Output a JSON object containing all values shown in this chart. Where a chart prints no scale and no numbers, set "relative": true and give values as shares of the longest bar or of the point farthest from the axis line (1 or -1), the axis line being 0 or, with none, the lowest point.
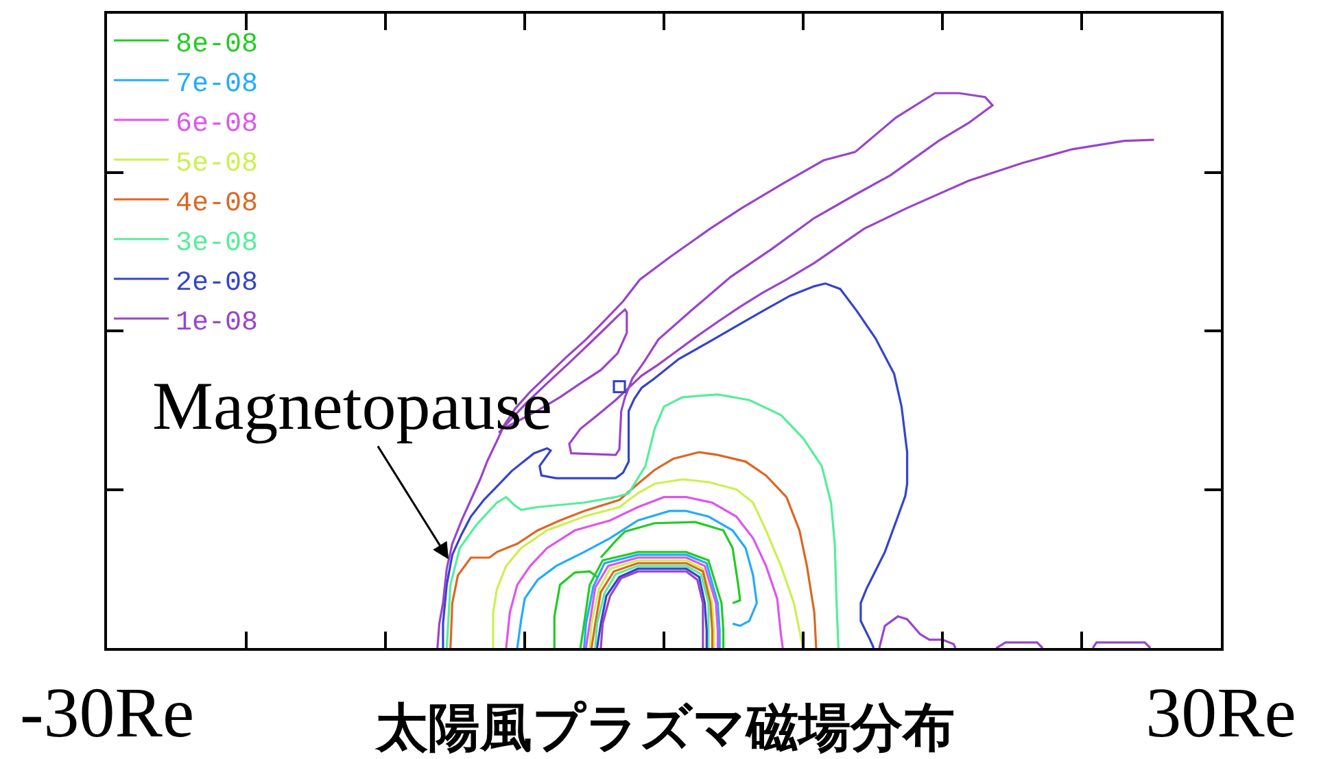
{
  "chart_data": {
    "type": "line",
    "relative": true,
    "xlabel": "太陽風プラズマ磁場分布",
    "xlim": [
      -30,
      30
    ],
    "xticks": [
      {
        "value": -30,
        "label": "-30Re"
      },
      {
        "value": -22.5,
        "label": null
      },
      {
        "value": -15,
        "label": null
      },
      {
        "value": -7.5,
        "label": null
      },
      {
        "value": 0,
        "label": null
      },
      {
        "value": 7.5,
        "label": null
      },
      {
        "value": 15,
        "label": null
      },
      {
        "value": 22.5,
        "label": null
      },
      {
        "value": 30,
        "label": "30Re"
      }
    ],
    "grid": false,
    "legend": "top left",
    "annotations": [
      {
        "text": "Magnetopause",
        "x": -11.6,
        "y": 0.16
      }
    ],
    "series": [
      {
        "name": "8e-08",
        "color": "#22cc22",
        "x": [
          -5.9,
          -5.9,
          -5.6,
          -4.8,
          -4.0,
          -3.6,
          null,
          -3.4,
          -2.6,
          -2.1,
          -0.5,
          1.7,
          3.2,
          3.7,
          4.0,
          4.1,
          3.7,
          null,
          -4.5,
          -4.3,
          -4.0,
          -3.3,
          -1.4,
          1.2,
          2.4,
          3.1,
          3.2,
          3.2
        ],
        "values": [
          0,
          0.057,
          0.114,
          0.136,
          0.138,
          0.128,
          null,
          0.163,
          0.193,
          0.21,
          0.225,
          0.227,
          0.212,
          0.18,
          0.114,
          0.086,
          0.081,
          null,
          0,
          0.044,
          0.114,
          0.158,
          0.173,
          0.173,
          0.158,
          0.081,
          0.032,
          0
        ]
      },
      {
        "name": "7e-08",
        "color": "#22aaff",
        "x": [
          -7.9,
          -7.7,
          -7.5,
          -6.8,
          -5.8,
          -4.3,
          -2.9,
          -1.4,
          0.3,
          1.2,
          2.4,
          3.7,
          4.4,
          4.8,
          5.0,
          4.6,
          4.1,
          3.7,
          null,
          -4.3,
          -4.2,
          -3.8,
          -3.2,
          -1.4,
          1.2,
          2.3,
          2.9,
          3.0,
          3.0
        ],
        "values": [
          0,
          0.049,
          0.089,
          0.123,
          0.148,
          0.173,
          0.198,
          0.23,
          0.247,
          0.247,
          0.237,
          0.212,
          0.18,
          0.131,
          0.081,
          0.049,
          0.04,
          0.044,
          null,
          0,
          0.044,
          0.111,
          0.153,
          0.168,
          0.168,
          0.153,
          0.081,
          0.032,
          0
        ]
      },
      {
        "name": "6e-08",
        "color": "#dd55ee",
        "x": [
          -8.5,
          -8.3,
          -7.9,
          -7.2,
          -6.3,
          -4.8,
          -2.9,
          -1.4,
          0.0,
          1.2,
          2.6,
          3.9,
          4.8,
          5.5,
          6.1,
          6.3,
          6.4,
          null,
          -4.2,
          -4.0,
          -3.7,
          -3.0,
          -1.4,
          1.2,
          2.2,
          2.8,
          2.9,
          2.9
        ],
        "values": [
          0,
          0.064,
          0.114,
          0.148,
          0.18,
          0.212,
          0.23,
          0.254,
          0.272,
          0.272,
          0.262,
          0.237,
          0.198,
          0.148,
          0.089,
          0.025,
          0,
          null,
          0,
          0.044,
          0.109,
          0.148,
          0.163,
          0.163,
          0.148,
          0.081,
          0.032,
          0
        ]
      },
      {
        "name": "5e-08",
        "color": "#ccf050",
        "x": [
          -9.2,
          -9.2,
          -9.0,
          -8.5,
          -7.7,
          -6.3,
          -4.3,
          -2.4,
          -1.4,
          -0.5,
          1.0,
          2.4,
          3.9,
          4.8,
          5.5,
          6.3,
          7.0,
          7.4,
          7.5,
          null,
          -4.0,
          -3.9,
          -3.5,
          -2.9,
          -1.4,
          1.2,
          2.1,
          2.6,
          2.7,
          2.7
        ],
        "values": [
          0,
          0.064,
          0.106,
          0.148,
          0.18,
          0.212,
          0.237,
          0.254,
          0.279,
          0.296,
          0.304,
          0.299,
          0.286,
          0.262,
          0.212,
          0.148,
          0.081,
          0.015,
          0,
          null,
          0,
          0.044,
          0.106,
          0.143,
          0.158,
          0.158,
          0.143,
          0.081,
          0.032,
          0
        ]
      },
      {
        "name": "4e-08",
        "color": "#dd6622",
        "x": [
          -11.5,
          -11.4,
          -11.1,
          -10.4,
          -9.4,
          -9.0,
          -7.9,
          -6.8,
          -5.6,
          -4.3,
          -2.4,
          -1.4,
          -0.5,
          0.5,
          1.9,
          2.9,
          4.4,
          5.5,
          6.6,
          7.3,
          7.7,
          8.1,
          8.2,
          null,
          -3.9,
          -3.7,
          -3.4,
          -2.7,
          -1.4,
          1.2,
          2.1,
          2.5,
          2.6,
          2.6
        ],
        "values": [
          0,
          0.081,
          0.131,
          0.163,
          0.163,
          0.173,
          0.188,
          0.212,
          0.23,
          0.247,
          0.267,
          0.296,
          0.321,
          0.341,
          0.353,
          0.348,
          0.336,
          0.311,
          0.272,
          0.212,
          0.148,
          0.064,
          0,
          null,
          0,
          0.044,
          0.101,
          0.138,
          0.153,
          0.153,
          0.138,
          0.081,
          0.032,
          0
        ]
      },
      {
        "name": "3e-08",
        "color": "#55ee99",
        "x": [
          -11.7,
          -11.6,
          -11.5,
          -11.0,
          -10.1,
          -9.0,
          -8.5,
          -8.1,
          -7.7,
          -6.8,
          -4.3,
          -2.6,
          -1.9,
          -1.0,
          -0.5,
          0.0,
          1.0,
          2.9,
          4.6,
          6.3,
          7.5,
          8.5,
          9.0,
          9.2,
          9.3,
          9.4,
          null,
          -3.7,
          -3.6,
          -3.2,
          -2.6,
          -1.4,
          1.2,
          2.0,
          2.4,
          2.4,
          2.4
        ],
        "values": [
          0,
          0.057,
          0.114,
          0.18,
          0.222,
          0.262,
          0.272,
          0.259,
          0.249,
          0.254,
          0.262,
          0.272,
          0.279,
          0.328,
          0.395,
          0.435,
          0.452,
          0.457,
          0.447,
          0.42,
          0.378,
          0.328,
          0.262,
          0.188,
          0.081,
          0,
          null,
          0,
          0.044,
          0.099,
          0.133,
          0.148,
          0.148,
          0.133,
          0.081,
          0.032,
          0
        ]
      },
      {
        "name": "2e-08",
        "color": "#3344cc",
        "x": [
          -11.9,
          -11.9,
          -11.7,
          -11.4,
          -10.9,
          -10.4,
          -9.7,
          -9.2,
          -8.2,
          -7.0,
          -6.3,
          -6.1,
          -6.7,
          -6.6,
          -5.8,
          -2.6,
          -2.2,
          -1.9,
          -1.9,
          -1.6,
          -1.2,
          -0.5,
          0.8,
          2.4,
          3.9,
          5.3,
          6.8,
          8.1,
          8.7,
          9.5,
          10.4,
          11.4,
          12.4,
          12.8,
          13.1,
          13.1,
          13.0,
          12.6,
          11.9,
          10.9,
          10.6,
          10.6,
          11.1,
          11.3,
          null,
          -3.6,
          -3.4,
          -3.1,
          -2.4,
          -1.4,
          1.2,
          1.9,
          2.2,
          2.3,
          2.3
        ],
        "values": [
          0,
          0.044,
          0.114,
          0.168,
          0.205,
          0.237,
          0.267,
          0.284,
          0.319,
          0.351,
          0.36,
          0.356,
          0.328,
          0.311,
          0.306,
          0.306,
          0.316,
          0.336,
          0.427,
          0.449,
          0.469,
          0.486,
          0.521,
          0.551,
          0.58,
          0.607,
          0.635,
          0.652,
          0.657,
          0.647,
          0.607,
          0.558,
          0.494,
          0.435,
          0.353,
          0.296,
          0.274,
          0.237,
          0.173,
          0.106,
          0.081,
          0.049,
          0.015,
          0,
          null,
          0,
          0.044,
          0.094,
          0.128,
          0.143,
          0.143,
          0.128,
          0.081,
          0.032,
          0
        ]
      },
      {
        "name": "1e-08",
        "color": "#9944cc",
        "x": [
          -12.2,
          -12.1,
          -11.9,
          -11.7,
          -11.4,
          -10.9,
          -10.4,
          -9.9,
          -9.5,
          -9.0,
          -8.6,
          -8.0,
          -7.2,
          -6.3,
          -5.3,
          -4.2,
          -3.2,
          -2.2,
          -1.3,
          0.3,
          2.5,
          4.2,
          6.4,
          8.6,
          10.3,
          12.5,
          14.6,
          15.9,
          17.3,
          17.7,
          16.4,
          14.8,
          12.2,
          10.3,
          8.1,
          5.8,
          3.6,
          1.6,
          -0.3,
          -1.1,
          -1.7,
          -1.9,
          -2.6,
          -3.5,
          -4.5,
          -5.1,
          -5.0,
          -2.6,
          -2.4,
          -2.3,
          -2.1,
          -1.9,
          -1.2,
          -0.3,
          0.6,
          1.7,
          2.9,
          4.1,
          5.3,
          6.6,
          8.1,
          10.8,
          13.1,
          16.4,
          19.3,
          22.0,
          24.8,
          26.4,
          null,
          -3.4,
          -3.3,
          -2.9,
          -2.3,
          -1.4,
          1.2,
          1.8,
          2.1,
          2.1,
          2.1,
          null,
          11.6,
          11.9,
          12.6,
          13.1,
          13.8,
          14.3,
          15.0,
          15.6,
          15.7,
          null,
          17.9,
          18.4,
          20.1,
          20.4,
          null,
          23.1,
          23.3,
          25.9,
          26.2
        ],
        "values": [
          0,
          0.044,
          0.081,
          0.143,
          0.188,
          0.23,
          0.267,
          0.304,
          0.338,
          0.373,
          0.402,
          0.432,
          0.462,
          0.491,
          0.523,
          0.556,
          0.59,
          0.625,
          0.664,
          0.704,
          0.756,
          0.793,
          0.837,
          0.879,
          0.894,
          0.956,
          1.0,
          1.0,
          0.993,
          0.978,
          0.946,
          0.914,
          0.852,
          0.817,
          0.775,
          0.719,
          0.669,
          0.612,
          0.556,
          0.514,
          0.486,
          0.469,
          0.447,
          0.422,
          0.395,
          0.368,
          0.351,
          0.348,
          0.358,
          0.427,
          0.452,
          0.469,
          0.491,
          0.511,
          0.533,
          0.56,
          0.588,
          0.615,
          0.64,
          0.664,
          0.694,
          0.756,
          0.793,
          0.842,
          0.874,
          0.899,
          0.914,
          0.916,
          null,
          0,
          0.044,
          0.094,
          0.126,
          0.138,
          0.138,
          0.123,
          0.081,
          0.032,
          0,
          null,
          0,
          0.04,
          0.057,
          0.052,
          0.025,
          0.015,
          0.015,
          0.007,
          0,
          null,
          0,
          0.01,
          0.01,
          0,
          null,
          0,
          0.01,
          0.01,
          0
        ]
      },
      {
        "type": "scatter",
        "marker": "square",
        "color": "#3344cc",
        "x": [
          -2.4
        ],
        "values": [
          0.471
        ]
      },
      {
        "color": "#9944cc",
        "x": [
          -8.9,
          -8.3,
          -7.4,
          -6.3,
          -5.2,
          -4.1,
          -3.2,
          -2.5,
          -2.1,
          -2.0,
          -2.0,
          -2.5,
          -3.4,
          -4.5,
          -5.6,
          -6.7,
          -7.7,
          -8.5
        ],
        "values": [
          0.388,
          0.41,
          0.442,
          0.477,
          0.511,
          0.546,
          0.575,
          0.598,
          0.61,
          0.605,
          0.568,
          0.531,
          0.501,
          0.477,
          0.452,
          0.43,
          0.412,
          0.398
        ]
      }
    ]
  }
}
